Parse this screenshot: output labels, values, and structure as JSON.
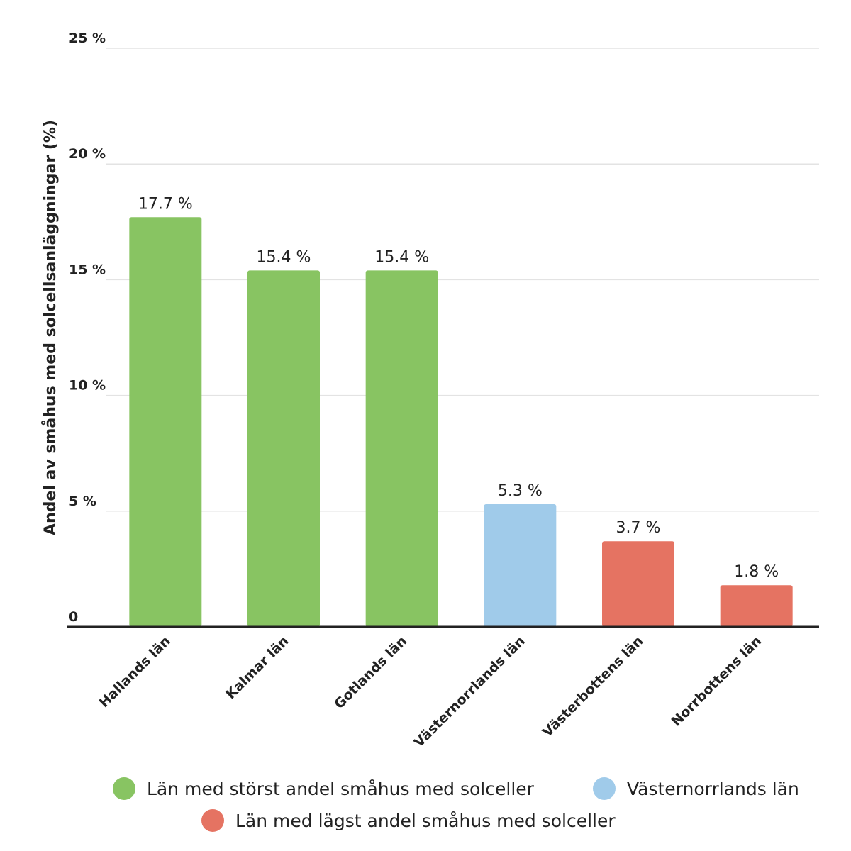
{
  "chart_data": {
    "type": "bar",
    "y_label": "Andel av småhus med solcellsanläggningar (%)",
    "categories": [
      "Hallands län",
      "Kalmar län",
      "Gotlands län",
      "Västernorrlands län",
      "Västerbottens län",
      "Norrbottens län"
    ],
    "series": [
      {
        "name": "Län med störst andel småhus med solceller",
        "color": "#88c462",
        "values": [
          17.7,
          15.4,
          15.4,
          null,
          null,
          null
        ],
        "value_labels": [
          "17.7 %",
          "15.4 %",
          "15.4 %",
          null,
          null,
          null
        ]
      },
      {
        "name": "Västernorrlands län",
        "color": "#a0cbea",
        "values": [
          null,
          null,
          null,
          5.3,
          null,
          null
        ],
        "value_labels": [
          null,
          null,
          null,
          "5.3 %",
          null,
          null
        ]
      },
      {
        "name": "Län med lägst andel småhus med solceller",
        "color": "#e57362",
        "values": [
          null,
          null,
          null,
          null,
          3.7,
          1.8
        ],
        "value_labels": [
          null,
          null,
          null,
          null,
          "3.7 %",
          "1.8 %"
        ]
      }
    ],
    "ylim": [
      0,
      25
    ],
    "yticks": [
      0,
      {
        "value": 5,
        "label": "5 %"
      },
      {
        "value": 10,
        "label": "10 %"
      },
      {
        "value": 15,
        "label": "15 %"
      },
      {
        "value": 20,
        "label": "20 %"
      },
      {
        "value": 25,
        "label": "25 %"
      }
    ],
    "grid": true
  }
}
